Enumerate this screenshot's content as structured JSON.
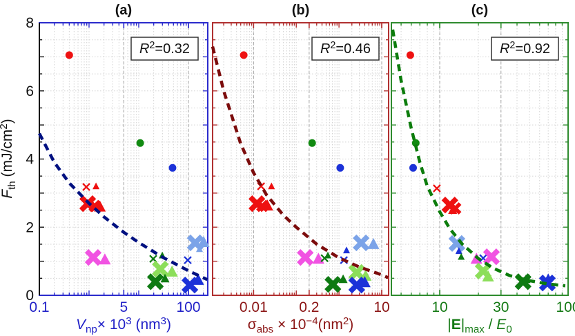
{
  "chart_data": {
    "type": "scatter",
    "description": "Three-panel log-x scatter plot of damage threshold fluence vs nanoparticle volume, absorption cross-section and field enhancement, each with a dashed power-law fit",
    "y_axis": {
      "label_segments": [
        {
          "t": "F",
          "style": "i"
        },
        {
          "t": "th",
          "style": "sub"
        },
        {
          "t": " (mJ/cm",
          "style": ""
        },
        {
          "t": "2",
          "style": "sup"
        },
        {
          "t": ")",
          "style": ""
        }
      ],
      "range": [
        0,
        8
      ],
      "major_ticks": [
        0,
        2,
        4,
        6,
        8
      ],
      "tick_labels": [
        "0",
        "2",
        "4",
        "6",
        "8"
      ],
      "minor_step": 0.5,
      "color": "#111111"
    },
    "marker_colors": {
      "red": "#ee1111",
      "green": "#118a11",
      "blue": "#1c32d8",
      "pink": "#f153e2",
      "lblue": "#7ba3e8",
      "dgreen": "#0e7a12",
      "lgreen": "#8cde5a"
    },
    "grid": {
      "minor_color": "#d2d2d2",
      "major_color": "#a3a3a3",
      "on": true
    },
    "panels": [
      {
        "id": "a",
        "title": "(a)",
        "frame_color": "#2b2bcc",
        "text_color": "#2222c8",
        "curve_color": "#001080",
        "r2_segments": [
          {
            "t": "R",
            "style": "i"
          },
          {
            "t": "2",
            "style": "sup"
          },
          {
            "t": "=0.32",
            "style": ""
          }
        ],
        "x_label_segments": [
          {
            "t": "V",
            "style": "i"
          },
          {
            "t": "np",
            "style": "sub"
          },
          {
            "t": "× 10",
            "style": ""
          },
          {
            "t": "3",
            "style": "sup"
          },
          {
            "t": " (nm",
            "style": ""
          },
          {
            "t": "3",
            "style": "sup"
          },
          {
            "t": ")",
            "style": ""
          }
        ],
        "x_range": [
          0.1,
          245
        ],
        "x_tick_labels": [
          {
            "v": 0.1,
            "t": "0.1"
          },
          {
            "v": 5,
            "t": "5"
          },
          {
            "v": 100,
            "t": "100"
          }
        ],
        "trend_curve": [
          [
            0.1,
            4.75
          ],
          [
            0.2,
            3.9
          ],
          [
            0.4,
            3.3
          ],
          [
            1,
            2.7
          ],
          [
            2,
            2.3
          ],
          [
            5,
            1.85
          ],
          [
            10,
            1.55
          ],
          [
            30,
            1.12
          ],
          [
            100,
            0.72
          ],
          [
            240,
            0.46
          ]
        ],
        "markers": [
          {
            "group": "red",
            "shape": "circle",
            "x": 0.4,
            "y": 7.05
          },
          {
            "group": "green",
            "shape": "circle",
            "x": 10.7,
            "y": 4.47
          },
          {
            "group": "blue",
            "shape": "circle",
            "x": 48,
            "y": 3.74
          },
          {
            "group": "red",
            "shape": "xs",
            "x": 0.88,
            "y": 3.18
          },
          {
            "group": "red",
            "shape": "triS",
            "x": 1.38,
            "y": 3.2
          },
          {
            "group": "red",
            "shape": "XL",
            "x": 0.94,
            "y": 2.69
          },
          {
            "group": "red",
            "shape": "XM",
            "x": 1.3,
            "y": 2.62
          },
          {
            "group": "red",
            "shape": "triL",
            "x": 1.65,
            "y": 2.6
          },
          {
            "group": "pink",
            "shape": "XL",
            "x": 1.21,
            "y": 1.11
          },
          {
            "group": "pink",
            "shape": "triL",
            "x": 2.08,
            "y": 1.05
          },
          {
            "group": "dgreen",
            "shape": "xs",
            "x": 19.6,
            "y": 1.07
          },
          {
            "group": "dgreen",
            "shape": "triS",
            "x": 29.8,
            "y": 1.17
          },
          {
            "group": "blue",
            "shape": "xs",
            "x": 97,
            "y": 1.03
          },
          {
            "group": "lblue",
            "shape": "XL",
            "x": 137,
            "y": 1.54
          },
          {
            "group": "lblue",
            "shape": "triL",
            "x": 202,
            "y": 1.56
          },
          {
            "group": "lblue",
            "shape": "triS",
            "x": 167,
            "y": 1.36
          },
          {
            "group": "lgreen",
            "shape": "XL",
            "x": 27.2,
            "y": 0.77
          },
          {
            "group": "lgreen",
            "shape": "triL",
            "x": 46.8,
            "y": 0.69
          },
          {
            "group": "dgreen",
            "shape": "XL",
            "x": 21.6,
            "y": 0.4
          },
          {
            "group": "dgreen",
            "shape": "triM",
            "x": 33.7,
            "y": 0.49
          },
          {
            "group": "blue",
            "shape": "XL",
            "x": 107,
            "y": 0.3
          },
          {
            "group": "blue",
            "shape": "triL",
            "x": 157,
            "y": 0.45
          }
        ]
      },
      {
        "id": "b",
        "title": "(b)",
        "frame_color": "#b03030",
        "text_color": "#8b1515",
        "curve_color": "#7c0c0c",
        "r2_segments": [
          {
            "t": "R",
            "style": "i"
          },
          {
            "t": "2",
            "style": "sup"
          },
          {
            "t": "=0.46",
            "style": ""
          }
        ],
        "x_label_segments": [
          {
            "t": "σ",
            "style": ""
          },
          {
            "t": "abs",
            "style": "sub"
          },
          {
            "t": " × 10",
            "style": ""
          },
          {
            "t": "−4",
            "style": "sup"
          },
          {
            "t": "(nm",
            "style": ""
          },
          {
            "t": "2",
            "style": "sup"
          },
          {
            "t": ")",
            "style": ""
          }
        ],
        "x_range": [
          0.0011,
          14.5
        ],
        "x_tick_labels": [
          {
            "v": 0.01,
            "t": "0.01"
          },
          {
            "v": 0.2,
            "t": "0.2"
          },
          {
            "v": 10,
            "t": "10"
          }
        ],
        "trend_curve": [
          [
            0.0011,
            7.3
          ],
          [
            0.002,
            6.0
          ],
          [
            0.005,
            4.45
          ],
          [
            0.01,
            3.6
          ],
          [
            0.02,
            2.95
          ],
          [
            0.05,
            2.35
          ],
          [
            0.1,
            2.0
          ],
          [
            0.3,
            1.5
          ],
          [
            1,
            1.1
          ],
          [
            3,
            0.83
          ],
          [
            10,
            0.6
          ],
          [
            14,
            0.52
          ]
        ],
        "markers": [
          {
            "group": "red",
            "shape": "circle",
            "x": 0.0059,
            "y": 7.05
          },
          {
            "group": "green",
            "shape": "circle",
            "x": 0.235,
            "y": 4.47
          },
          {
            "group": "blue",
            "shape": "circle",
            "x": 1.07,
            "y": 3.74
          },
          {
            "group": "red",
            "shape": "xs",
            "x": 0.015,
            "y": 3.2
          },
          {
            "group": "red",
            "shape": "triS",
            "x": 0.0263,
            "y": 3.2
          },
          {
            "group": "red",
            "shape": "XL",
            "x": 0.012,
            "y": 2.69
          },
          {
            "group": "red",
            "shape": "XM",
            "x": 0.016,
            "y": 2.62
          },
          {
            "group": "red",
            "shape": "triL",
            "x": 0.021,
            "y": 2.63
          },
          {
            "group": "pink",
            "shape": "XL",
            "x": 0.162,
            "y": 1.11
          },
          {
            "group": "pink",
            "shape": "triL",
            "x": 0.33,
            "y": 1.07
          },
          {
            "group": "dgreen",
            "shape": "xs",
            "x": 0.46,
            "y": 1.09
          },
          {
            "group": "dgreen",
            "shape": "triS",
            "x": 0.55,
            "y": 1.17
          },
          {
            "group": "blue",
            "shape": "triS",
            "x": 1.5,
            "y": 1.32
          },
          {
            "group": "blue",
            "shape": "xs",
            "x": 1.3,
            "y": 1.03
          },
          {
            "group": "lblue",
            "shape": "XL",
            "x": 3.3,
            "y": 1.54
          },
          {
            "group": "lblue",
            "shape": "triL",
            "x": 6.4,
            "y": 1.5
          },
          {
            "group": "lgreen",
            "shape": "XL",
            "x": 2.6,
            "y": 0.67
          },
          {
            "group": "lgreen",
            "shape": "triL",
            "x": 4.2,
            "y": 0.57
          },
          {
            "group": "dgreen",
            "shape": "XL",
            "x": 0.72,
            "y": 0.32
          },
          {
            "group": "dgreen",
            "shape": "triM",
            "x": 1.25,
            "y": 0.47
          },
          {
            "group": "blue",
            "shape": "XL",
            "x": 2.6,
            "y": 0.3
          },
          {
            "group": "blue",
            "shape": "triL",
            "x": 4.0,
            "y": 0.38
          }
        ]
      },
      {
        "id": "c",
        "title": "(c)",
        "frame_color": "#2e8b2e",
        "text_color": "#157a15",
        "curve_color": "#0c7c0c",
        "r2_segments": [
          {
            "t": "R",
            "style": "i"
          },
          {
            "t": "2",
            "style": "sup"
          },
          {
            "t": "=0.92",
            "style": ""
          }
        ],
        "x_label_segments": [
          {
            "t": "|",
            "style": ""
          },
          {
            "t": "E",
            "style": "b"
          },
          {
            "t": "|",
            "style": ""
          },
          {
            "t": "max",
            "style": "sub"
          },
          {
            "t": " / ",
            "style": ""
          },
          {
            "t": "E",
            "style": "i"
          },
          {
            "t": "0",
            "style": "sub"
          },
          {
            "t": "",
            "style": ""
          }
        ],
        "x_range": [
          4.2,
          100
        ],
        "x_tick_labels": [
          {
            "v": 10,
            "t": "10"
          },
          {
            "v": 30,
            "t": "30"
          },
          {
            "v": 100,
            "t": "100"
          }
        ],
        "trend_curve": [
          [
            4.3,
            7.8
          ],
          [
            5,
            6.3
          ],
          [
            6,
            4.9
          ],
          [
            7,
            3.9
          ],
          [
            8,
            3.2
          ],
          [
            10,
            2.45
          ],
          [
            12,
            1.95
          ],
          [
            15,
            1.5
          ],
          [
            20,
            1.08
          ],
          [
            26,
            0.8
          ],
          [
            35,
            0.58
          ],
          [
            50,
            0.43
          ],
          [
            70,
            0.33
          ],
          [
            95,
            0.28
          ]
        ],
        "markers": [
          {
            "group": "red",
            "shape": "circle",
            "x": 5.9,
            "y": 7.05
          },
          {
            "group": "green",
            "shape": "circle",
            "x": 6.5,
            "y": 4.47
          },
          {
            "group": "blue",
            "shape": "circle",
            "x": 6.2,
            "y": 3.74
          },
          {
            "group": "red",
            "shape": "xs",
            "x": 9.5,
            "y": 3.14
          },
          {
            "group": "red",
            "shape": "XL",
            "x": 12.0,
            "y": 2.65
          },
          {
            "group": "red",
            "shape": "XM",
            "x": 13.2,
            "y": 2.55
          },
          {
            "group": "red",
            "shape": "triM",
            "x": 12.6,
            "y": 2.5
          },
          {
            "group": "lblue",
            "shape": "XL",
            "x": 13.6,
            "y": 1.52
          },
          {
            "group": "blue",
            "shape": "triS",
            "x": 14.1,
            "y": 1.3
          },
          {
            "group": "dgreen",
            "shape": "triS",
            "x": 14.7,
            "y": 1.13
          },
          {
            "group": "pink",
            "shape": "triL",
            "x": 19.3,
            "y": 1.07
          },
          {
            "group": "blue",
            "shape": "xs",
            "x": 21.8,
            "y": 1.09
          },
          {
            "group": "pink",
            "shape": "XL",
            "x": 25.3,
            "y": 1.13
          },
          {
            "group": "lgreen",
            "shape": "XL",
            "x": 21.8,
            "y": 0.71
          },
          {
            "group": "lgreen",
            "shape": "triL",
            "x": 23.8,
            "y": 0.55
          },
          {
            "group": "dgreen",
            "shape": "triM",
            "x": 47,
            "y": 0.47
          },
          {
            "group": "dgreen",
            "shape": "XL",
            "x": 44.6,
            "y": 0.4
          },
          {
            "group": "blue",
            "shape": "triM",
            "x": 70,
            "y": 0.5
          },
          {
            "group": "blue",
            "shape": "XL",
            "x": 69,
            "y": 0.36
          }
        ]
      }
    ]
  }
}
